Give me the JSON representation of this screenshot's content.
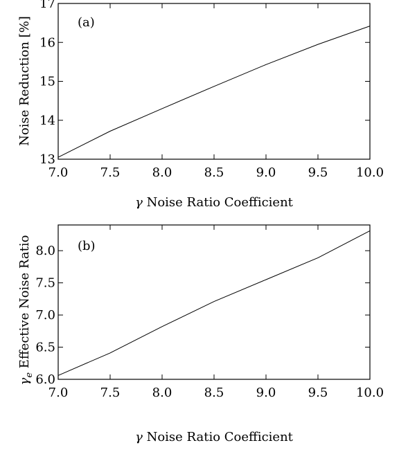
{
  "chart_data": [
    {
      "type": "line",
      "panel_label": "(a)",
      "xlabel_symbol": "γ",
      "xlabel_text": " Noise Ratio Coefficient",
      "ylabel": "Noise Reduction [%]",
      "xlim": [
        7.0,
        10.0
      ],
      "ylim": [
        13,
        17
      ],
      "xticks": [
        7.0,
        7.5,
        8.0,
        8.5,
        9.0,
        9.5,
        10.0
      ],
      "xtick_labels": [
        "7.0",
        "7.5",
        "8.0",
        "8.5",
        "9.0",
        "9.5",
        "10.0"
      ],
      "yticks": [
        13,
        14,
        15,
        16,
        17
      ],
      "ytick_labels": [
        "13",
        "14",
        "15",
        "16",
        "17"
      ],
      "x": [
        7.0,
        7.5,
        8.0,
        8.5,
        9.0,
        9.5,
        10.0
      ],
      "y": [
        13.05,
        13.72,
        14.3,
        14.87,
        15.43,
        15.95,
        16.42
      ],
      "grid": false
    },
    {
      "type": "line",
      "panel_label": "(b)",
      "xlabel_symbol": "γ",
      "xlabel_text": " Noise Ratio Coefficient",
      "ylabel_symbol": "γ",
      "ylabel_sub": "e",
      "ylabel_text": " Effective Noise Ratio",
      "xlim": [
        7.0,
        10.0
      ],
      "ylim": [
        6.0,
        8.4
      ],
      "xticks": [
        7.0,
        7.5,
        8.0,
        8.5,
        9.0,
        9.5,
        10.0
      ],
      "xtick_labels": [
        "7.0",
        "7.5",
        "8.0",
        "8.5",
        "9.0",
        "9.5",
        "10.0"
      ],
      "yticks": [
        6.0,
        6.5,
        7.0,
        7.5,
        8.0
      ],
      "ytick_labels": [
        "6.0",
        "6.5",
        "7.0",
        "7.5",
        "8.0"
      ],
      "x": [
        7.0,
        7.5,
        8.0,
        8.5,
        9.0,
        9.5,
        10.0
      ],
      "y": [
        6.06,
        6.41,
        6.82,
        7.21,
        7.55,
        7.89,
        8.31
      ],
      "grid": false
    }
  ]
}
